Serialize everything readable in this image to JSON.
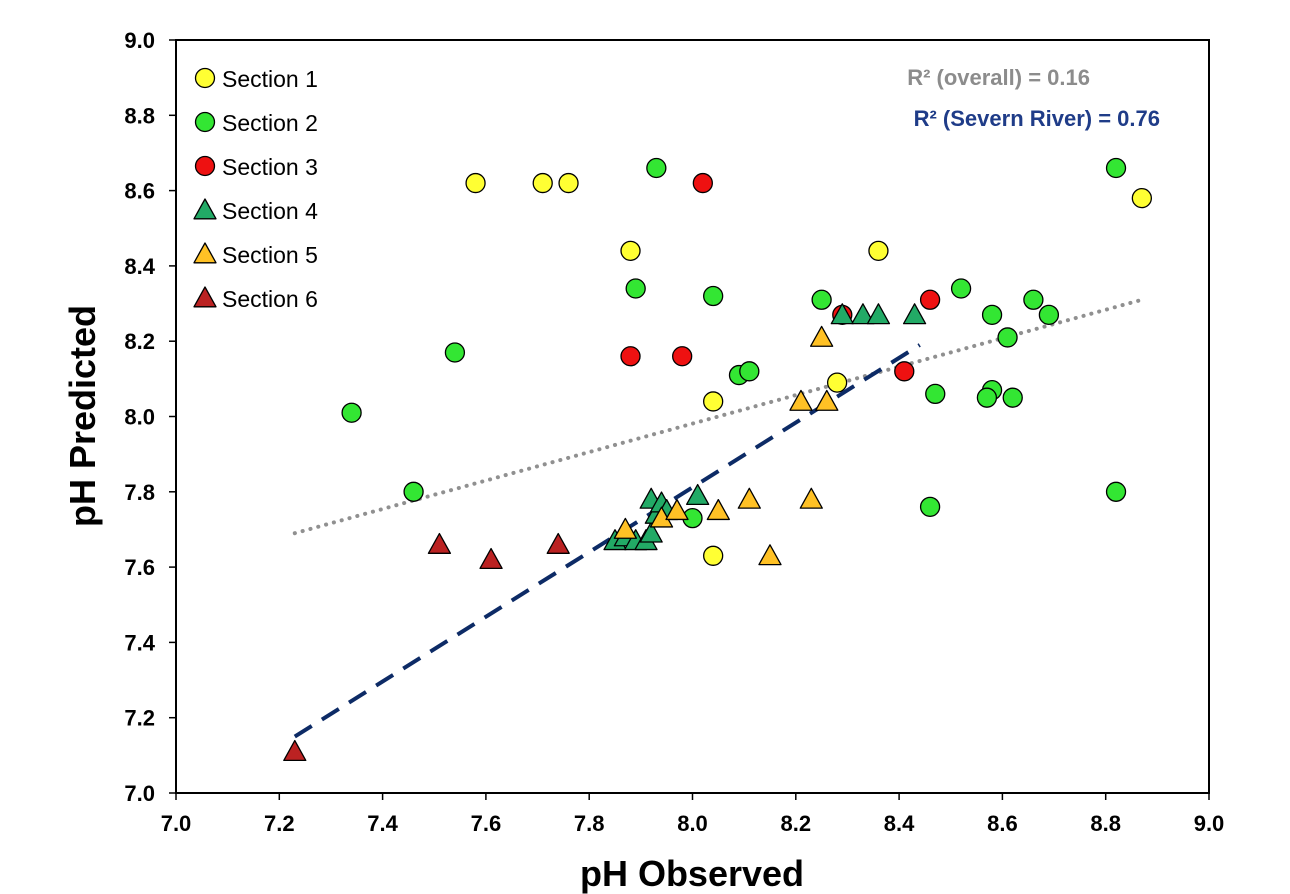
{
  "chart_data": {
    "type": "scatter",
    "xlabel": "pH Observed",
    "ylabel": "pH Predicted",
    "xlim": [
      7.0,
      9.0
    ],
    "ylim": [
      7.0,
      9.0
    ],
    "x_ticks": [
      "7.0",
      "7.2",
      "7.4",
      "7.6",
      "7.8",
      "8.0",
      "8.2",
      "8.4",
      "8.6",
      "8.8",
      "9.0"
    ],
    "y_ticks": [
      "7.0",
      "7.2",
      "7.4",
      "7.6",
      "7.8",
      "8.0",
      "8.2",
      "8.4",
      "8.6",
      "8.8",
      "9.0"
    ],
    "grid": false,
    "legend_position": "top-left",
    "series": [
      {
        "name": "Section 1",
        "marker": "circle",
        "color": "#FFFF33",
        "points": [
          [
            7.58,
            8.62
          ],
          [
            7.71,
            8.62
          ],
          [
            7.76,
            8.62
          ],
          [
            7.88,
            8.44
          ],
          [
            8.36,
            8.44
          ],
          [
            8.04,
            8.04
          ],
          [
            8.28,
            8.09
          ],
          [
            8.04,
            7.63
          ],
          [
            8.87,
            8.58
          ]
        ]
      },
      {
        "name": "Section 2",
        "marker": "circle",
        "color": "#33E633",
        "points": [
          [
            7.34,
            8.01
          ],
          [
            7.46,
            7.8
          ],
          [
            7.54,
            8.17
          ],
          [
            7.89,
            8.34
          ],
          [
            7.93,
            8.66
          ],
          [
            8.04,
            8.32
          ],
          [
            8.0,
            7.73
          ],
          [
            8.09,
            8.11
          ],
          [
            8.11,
            8.12
          ],
          [
            8.25,
            8.31
          ],
          [
            8.47,
            8.06
          ],
          [
            8.46,
            7.76
          ],
          [
            8.52,
            8.34
          ],
          [
            8.58,
            8.27
          ],
          [
            8.58,
            8.07
          ],
          [
            8.57,
            8.05
          ],
          [
            8.61,
            8.21
          ],
          [
            8.62,
            8.05
          ],
          [
            8.66,
            8.31
          ],
          [
            8.69,
            8.27
          ],
          [
            8.82,
            8.66
          ],
          [
            8.82,
            7.8
          ]
        ]
      },
      {
        "name": "Section 3",
        "marker": "circle",
        "color": "#EE1111",
        "points": [
          [
            7.88,
            8.16
          ],
          [
            7.98,
            8.16
          ],
          [
            8.02,
            8.62
          ],
          [
            8.29,
            8.27
          ],
          [
            8.41,
            8.12
          ],
          [
            8.46,
            8.31
          ]
        ]
      },
      {
        "name": "Section 4",
        "marker": "triangle",
        "color": "#22AA66",
        "points": [
          [
            7.85,
            7.67
          ],
          [
            7.87,
            7.68
          ],
          [
            7.89,
            7.67
          ],
          [
            7.91,
            7.67
          ],
          [
            7.92,
            7.69
          ],
          [
            7.92,
            7.78
          ],
          [
            7.93,
            7.74
          ],
          [
            7.94,
            7.77
          ],
          [
            7.95,
            7.75
          ],
          [
            8.01,
            7.79
          ],
          [
            8.29,
            8.27
          ],
          [
            8.33,
            8.27
          ],
          [
            8.36,
            8.27
          ],
          [
            8.43,
            8.27
          ]
        ]
      },
      {
        "name": "Section 5",
        "marker": "triangle",
        "color": "#FFC125",
        "points": [
          [
            7.87,
            7.7
          ],
          [
            7.94,
            7.73
          ],
          [
            7.97,
            7.75
          ],
          [
            8.05,
            7.75
          ],
          [
            8.11,
            7.78
          ],
          [
            8.15,
            7.63
          ],
          [
            8.21,
            8.04
          ],
          [
            8.23,
            7.78
          ],
          [
            8.25,
            8.21
          ],
          [
            8.26,
            8.04
          ]
        ]
      },
      {
        "name": "Section 6",
        "marker": "triangle",
        "color": "#BB2222",
        "points": [
          [
            7.23,
            7.11
          ],
          [
            7.51,
            7.66
          ],
          [
            7.61,
            7.62
          ],
          [
            7.74,
            7.66
          ]
        ]
      }
    ],
    "trendlines": [
      {
        "name": "overall",
        "color": "#909090",
        "style": "dotted",
        "x": [
          7.23,
          8.87
        ],
        "y": [
          7.69,
          8.31
        ]
      },
      {
        "name": "Severn River",
        "color": "#0D2B66",
        "style": "dashed",
        "x": [
          7.23,
          8.44
        ],
        "y": [
          7.15,
          8.19
        ]
      }
    ],
    "annotations": [
      {
        "text": "R² (overall) = 0.16",
        "color": "#8C8C8C"
      },
      {
        "text": "R² (Severn River) = 0.76",
        "color": "#1F3C88"
      }
    ]
  }
}
